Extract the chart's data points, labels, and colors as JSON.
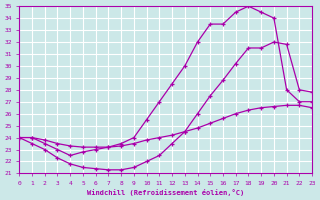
{
  "xlabel": "Windchill (Refroidissement éolien,°C)",
  "bg_color": "#cce8e8",
  "line_color": "#aa00aa",
  "grid_color": "#ffffff",
  "xlim": [
    0,
    23
  ],
  "ylim": [
    21,
    35
  ],
  "xticks": [
    0,
    1,
    2,
    3,
    4,
    5,
    6,
    7,
    8,
    9,
    10,
    11,
    12,
    13,
    14,
    15,
    16,
    17,
    18,
    19,
    20,
    21,
    22,
    23
  ],
  "yticks": [
    21,
    22,
    23,
    24,
    25,
    26,
    27,
    28,
    29,
    30,
    31,
    32,
    33,
    34,
    35
  ],
  "curve1_x": [
    0,
    1,
    2,
    3,
    4,
    5,
    6,
    7,
    8,
    9,
    10,
    11,
    12,
    13,
    14,
    15,
    16,
    17,
    18,
    19,
    20,
    21,
    22,
    23
  ],
  "curve1_y": [
    24.0,
    24.0,
    23.8,
    23.5,
    23.3,
    23.2,
    23.2,
    23.2,
    23.3,
    23.5,
    23.8,
    24.0,
    24.2,
    24.5,
    24.8,
    25.2,
    25.6,
    26.0,
    26.3,
    26.5,
    26.6,
    26.7,
    26.7,
    26.5
  ],
  "curve2_x": [
    0,
    1,
    2,
    3,
    4,
    5,
    6,
    7,
    8,
    9,
    10,
    11,
    12,
    13,
    14,
    15,
    16,
    17,
    18,
    19,
    20,
    21,
    22,
    23
  ],
  "curve2_y": [
    24.0,
    23.5,
    23.0,
    22.3,
    21.8,
    21.5,
    21.4,
    21.3,
    21.3,
    21.5,
    22.0,
    22.5,
    23.5,
    24.5,
    26.0,
    27.5,
    28.8,
    30.2,
    31.5,
    31.5,
    32.0,
    31.8,
    28.0,
    27.8
  ],
  "curve3_x": [
    0,
    1,
    2,
    3,
    4,
    5,
    6,
    7,
    8,
    9,
    10,
    11,
    12,
    13,
    14,
    15,
    16,
    17,
    18,
    19,
    20,
    21,
    22,
    23
  ],
  "curve3_y": [
    24.0,
    24.0,
    23.5,
    23.0,
    22.5,
    22.8,
    23.0,
    23.2,
    23.5,
    24.0,
    25.5,
    27.0,
    28.5,
    30.0,
    32.0,
    33.5,
    33.5,
    34.5,
    35.0,
    34.5,
    34.0,
    28.0,
    27.0,
    27.0
  ]
}
